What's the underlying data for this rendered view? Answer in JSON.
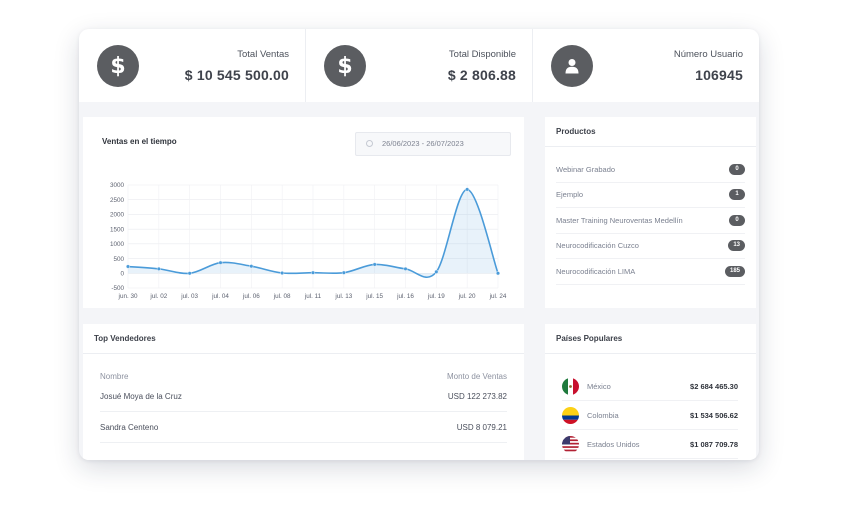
{
  "kpis": [
    {
      "label": "Total Ventas",
      "value": "$ 10 545 500.00",
      "icon": "dollar-icon"
    },
    {
      "label": "Total Disponible",
      "value": "$ 2 806.88",
      "icon": "dollar-icon"
    },
    {
      "label": "Número Usuario",
      "value": "106945",
      "icon": "user-icon"
    }
  ],
  "sales_chart": {
    "title": "Ventas en el tiempo",
    "date_range": "26/06/2023 - 26/07/2023"
  },
  "chart_data": {
    "type": "area",
    "categories": [
      "jun. 30",
      "jul. 02",
      "jul. 03",
      "jul. 04",
      "jul. 06",
      "jul. 08",
      "jul. 11",
      "jul. 13",
      "jul. 15",
      "jul. 16",
      "jul. 19",
      "jul. 20",
      "jul. 24"
    ],
    "values": [
      230,
      150,
      0,
      360,
      240,
      10,
      20,
      20,
      300,
      150,
      50,
      2850,
      0
    ],
    "yticks": [
      3000,
      2500,
      2000,
      1500,
      1000,
      500,
      0,
      -500
    ],
    "ylim": [
      -500,
      3000
    ],
    "grid": true,
    "color": "#4a9bd9"
  },
  "products": {
    "title": "Productos",
    "items": [
      {
        "name": "Webinar Grabado",
        "count": "0"
      },
      {
        "name": "Ejemplo",
        "count": "1"
      },
      {
        "name": "Master Training Neuroventas Medellín",
        "count": "0"
      },
      {
        "name": "Neurocodificación Cuzco",
        "count": "13"
      },
      {
        "name": "Neurocodificación LIMA",
        "count": "185"
      }
    ]
  },
  "sellers": {
    "title": "Top Vendedores",
    "col_name": "Nombre",
    "col_amount": "Monto de Ventas",
    "rows": [
      {
        "name": "Josué Moya de la Cruz",
        "amount": "USD 122 273.82"
      },
      {
        "name": "Sandra Centeno",
        "amount": "USD 8 079.21"
      }
    ]
  },
  "countries": {
    "title": "Países Populares",
    "rows": [
      {
        "name": "México",
        "value": "$2 684 465.30",
        "flag": "mexico-flag-icon"
      },
      {
        "name": "Colombia",
        "value": "$1 534 506.62",
        "flag": "colombia-flag-icon"
      },
      {
        "name": "Estados Unidos",
        "value": "$1 087 709.78",
        "flag": "usa-flag-icon"
      }
    ]
  }
}
